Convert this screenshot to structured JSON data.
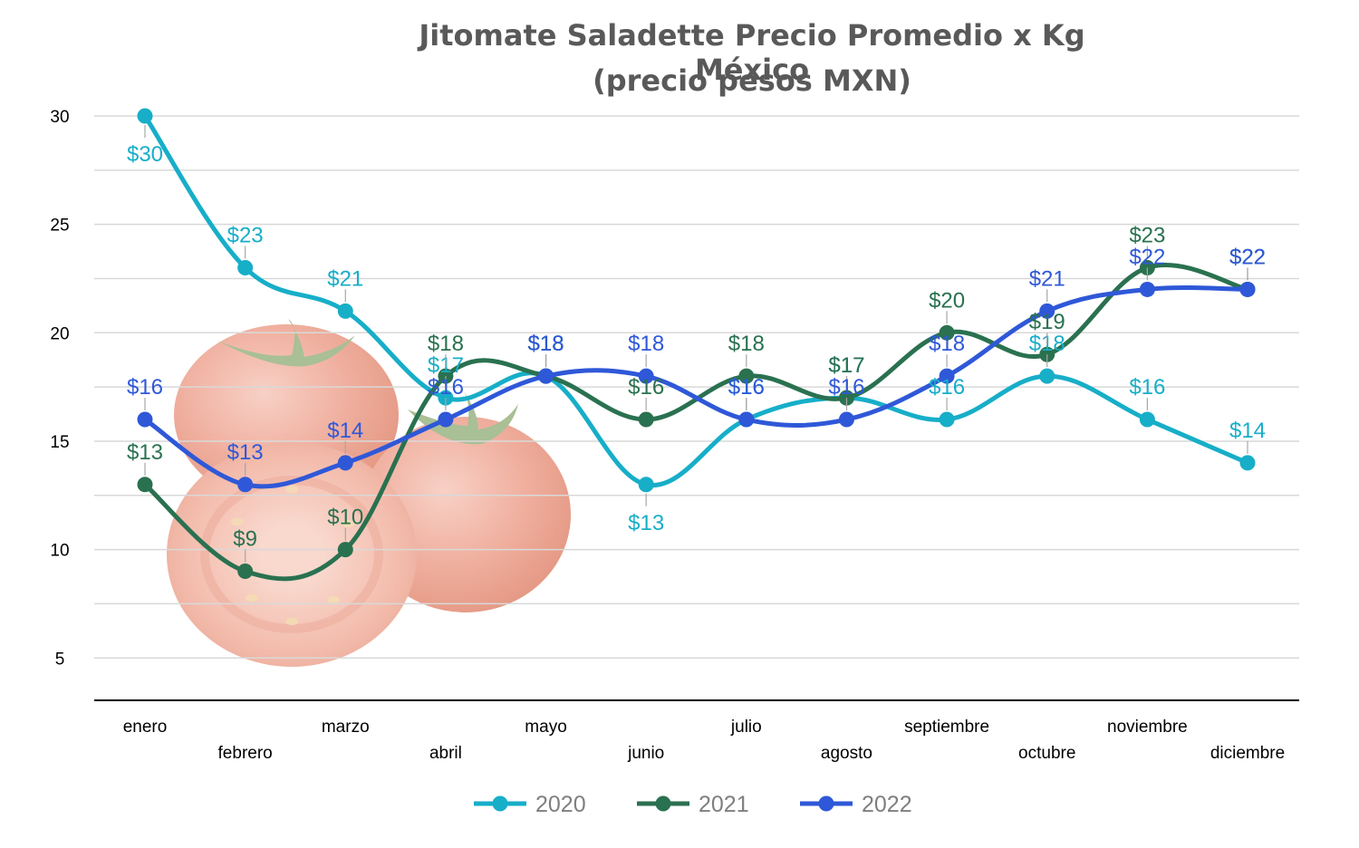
{
  "chart_data": {
    "type": "line",
    "title_line1": "Jitomate Saladette Precio Promedio x Kg México",
    "title_line2": "(precio pesos MXN)",
    "categories": [
      "enero",
      "febrero",
      "marzo",
      "abril",
      "mayo",
      "junio",
      "julio",
      "agosto",
      "septiembre",
      "octubre",
      "noviembre",
      "diciembre"
    ],
    "yticks": [
      5,
      10,
      15,
      20,
      25,
      30
    ],
    "ylim": [
      2.5,
      32.5
    ],
    "grid": true,
    "legend_position": "bottom",
    "data_label_prefix": "$",
    "series": [
      {
        "name": "2020",
        "color": "#17AEC8",
        "values": [
          30,
          23,
          21,
          17,
          18,
          13,
          16,
          17,
          16,
          18,
          16,
          14
        ]
      },
      {
        "name": "2021",
        "color": "#2A7150",
        "values": [
          13,
          9,
          10,
          18,
          18,
          16,
          18,
          17,
          20,
          19,
          23,
          22
        ]
      },
      {
        "name": "2022",
        "color": "#2F58D8",
        "values": [
          16,
          13,
          14,
          16,
          18,
          18,
          16,
          16,
          18,
          21,
          22,
          22
        ]
      }
    ]
  }
}
